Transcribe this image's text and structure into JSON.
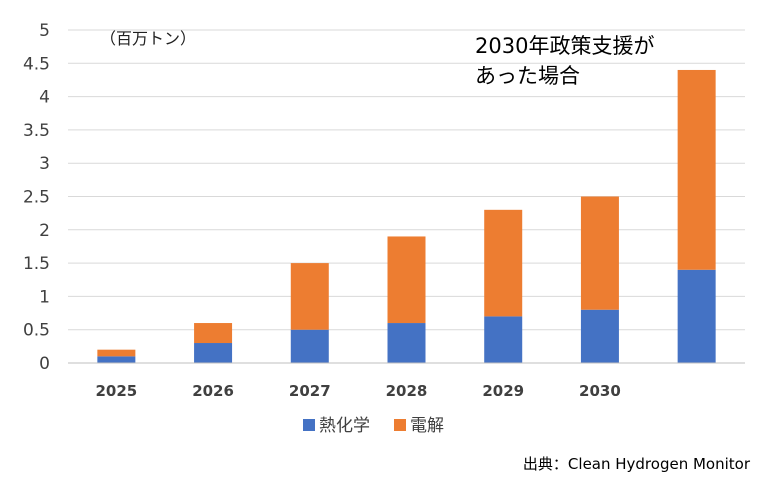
{
  "chart_data": {
    "type": "bar",
    "stacked": true,
    "categories": [
      "2025",
      "2026",
      "2027",
      "2028",
      "2029",
      "2030",
      ""
    ],
    "series": [
      {
        "name": "熱化学",
        "values": [
          0.1,
          0.3,
          0.5,
          0.6,
          0.7,
          0.8,
          1.4
        ],
        "color": "#4472C4"
      },
      {
        "name": "電解",
        "values": [
          0.1,
          0.3,
          1.0,
          1.3,
          1.6,
          1.7,
          3.0
        ],
        "color": "#ED7D31"
      }
    ],
    "ylim": [
      0,
      5
    ],
    "yticks": [
      "0",
      "0.5",
      "1",
      "1.5",
      "2",
      "2.5",
      "3",
      "3.5",
      "4",
      "4.5",
      "5"
    ],
    "unit_label": "（百万トン）",
    "annotation": [
      "2030年政策支援が",
      "あった場合"
    ],
    "grid": true,
    "legend_position": "bottom",
    "source": "出典：Clean Hydrogen Monitor"
  }
}
